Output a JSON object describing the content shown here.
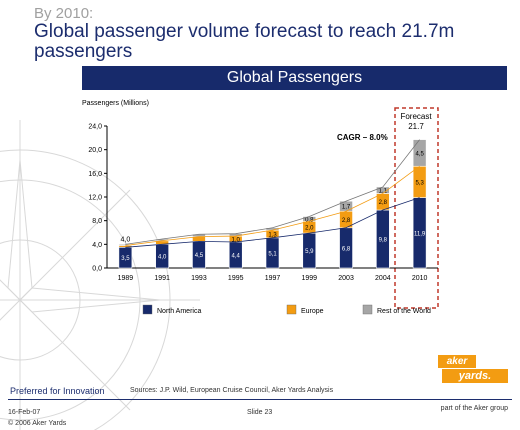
{
  "slide": {
    "kicker": "By 2010:",
    "headline": "Global passenger volume forecast to reach 21.7m passengers",
    "banner": "Global Passengers"
  },
  "chart_data": {
    "type": "bar",
    "stacked": true,
    "ylabel": "Passengers (Millions)",
    "ylim": [
      0,
      24
    ],
    "yticks": [
      "0,0",
      "4,0",
      "8,0",
      "12,0",
      "16,0",
      "20,0",
      "24,0"
    ],
    "categories": [
      "1989",
      "1991",
      "1993",
      "1995",
      "1997",
      "1999",
      "2003",
      "2004",
      "2010"
    ],
    "series": [
      {
        "name": "North America",
        "color": "#172a6b",
        "values": [
          3.5,
          4.0,
          4.5,
          4.4,
          5.1,
          5.9,
          6.8,
          9.8,
          11.9
        ],
        "labels": [
          "3,5",
          "4,0",
          "4,5",
          "4,4",
          "5,1",
          "5,9",
          "6,8",
          "9,8",
          "11,9"
        ]
      },
      {
        "name": "Europe",
        "color": "#f39c12",
        "values": [
          0.3,
          0.6,
          0.8,
          1.0,
          1.3,
          2.0,
          2.8,
          2.8,
          5.3
        ],
        "labels": [
          "",
          "",
          "",
          "1,0",
          "1,3",
          "2,0",
          "2,8",
          "2,8",
          "5,3"
        ]
      },
      {
        "name": "Rest of the World",
        "color": "#a6a6a6",
        "values": [
          0.2,
          0.3,
          0.4,
          0.4,
          0.4,
          0.8,
          1.7,
          1.1,
          4.5
        ],
        "labels": [
          "",
          "",
          "",
          "",
          "",
          "0,8",
          "1,7",
          "1,1",
          "4,5"
        ]
      }
    ],
    "top_label": {
      "category": "1989",
      "text": "4,0"
    },
    "annotations": {
      "cagr": "CAGR – 8.0%",
      "forecast_label": "Forecast",
      "forecast_value": "21.7"
    },
    "legend": "bottom"
  },
  "footer": {
    "tagline": "Preferred for Innovation",
    "source": "Sources: J.P. Wild, European Cruise Council, Aker Yards Analysis",
    "date": "16-Feb-07",
    "slide": "Slide 23",
    "copyright": "© 2006 Aker Yards",
    "group": "part of the Aker group"
  },
  "logo": {
    "top": "aker",
    "bottom": "yards."
  }
}
